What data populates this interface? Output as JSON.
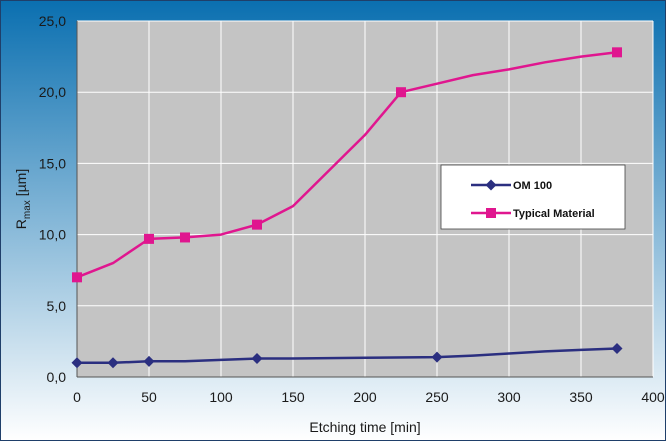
{
  "chart_data": {
    "type": "line",
    "title": "",
    "xlabel": "Etching time [min]",
    "ylabel": {
      "base": "R",
      "subscript": "max",
      "unit": " [µm]"
    },
    "xlim": [
      0,
      400
    ],
    "ylim": [
      0,
      25
    ],
    "x_ticks": [
      0,
      50,
      100,
      150,
      200,
      250,
      300,
      350,
      400
    ],
    "x_tick_labels": [
      "0",
      "50",
      "100",
      "150",
      "200",
      "250",
      "300",
      "350",
      "400"
    ],
    "y_ticks": [
      0,
      5,
      10,
      15,
      20,
      25
    ],
    "y_tick_labels": [
      "0,0",
      "5,0",
      "10,0",
      "15,0",
      "20,0",
      "25,0"
    ],
    "grid": true,
    "legend_position": "right",
    "series": [
      {
        "name": "OM 100",
        "color": "#2b2f80",
        "marker": "diamond",
        "x": [
          0,
          25,
          50,
          75,
          100,
          125,
          150,
          200,
          250,
          275,
          300,
          325,
          350,
          375
        ],
        "y": [
          1.0,
          1.0,
          1.1,
          1.1,
          1.2,
          1.3,
          1.3,
          1.35,
          1.4,
          1.5,
          1.65,
          1.8,
          1.9,
          2.0
        ],
        "marker_x": [
          0,
          25,
          50,
          125,
          250,
          375
        ]
      },
      {
        "name": "Typical Material",
        "color": "#e0168f",
        "marker": "square",
        "x": [
          0,
          25,
          50,
          75,
          100,
          125,
          150,
          200,
          225,
          250,
          275,
          300,
          325,
          350,
          375
        ],
        "y": [
          7.0,
          8.0,
          9.7,
          9.8,
          10.0,
          10.7,
          12.0,
          17.0,
          20.0,
          20.6,
          21.2,
          21.6,
          22.1,
          22.5,
          22.8
        ],
        "marker_x": [
          0,
          50,
          75,
          125,
          225,
          375
        ]
      }
    ]
  },
  "colors": {
    "background_gradient_top": "#0a6fb0",
    "background_gradient_bottom": "#ffffff",
    "plot_area": "#c4c4c4",
    "grid": "#ffffff",
    "legend_box": "#ffffff"
  }
}
